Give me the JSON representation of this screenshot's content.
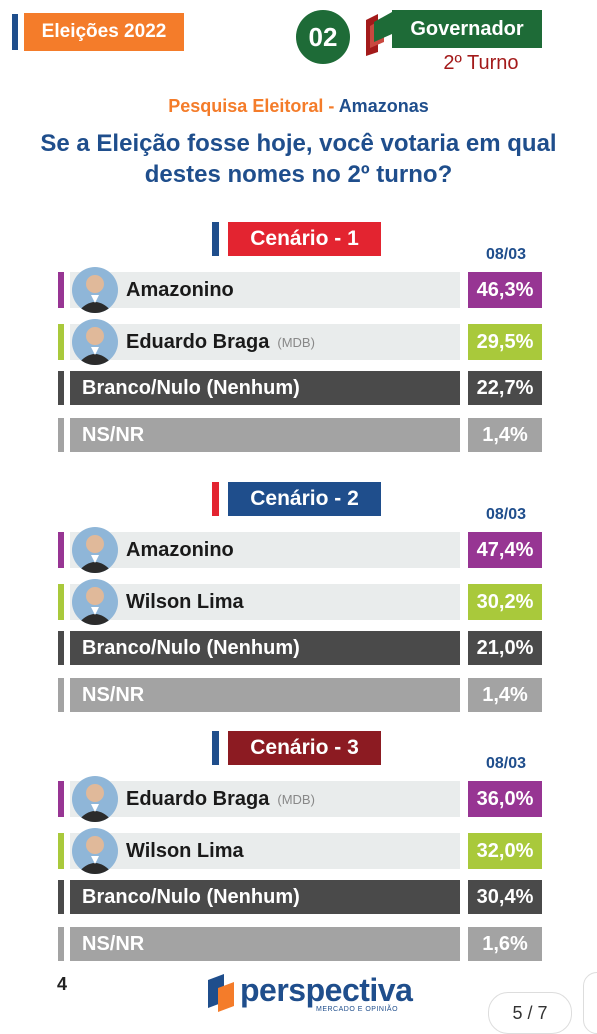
{
  "header": {
    "tag": "Eleições 2022",
    "number": "02",
    "office": "Governador",
    "turn": "2º Turno"
  },
  "subtitle": {
    "part1": "Pesquisa Eleitoral -",
    "part2": "Amazonas"
  },
  "question": "Se a Eleição fosse hoje, você votaria em qual destes nomes no 2º turno?",
  "colors": {
    "purple": "#973593",
    "green": "#a9c93b",
    "dark": "#4a4a4a",
    "gray": "#a3a3a3",
    "rowbg": "#e9ecec",
    "blue": "#1f4e8c",
    "red": "#e32430",
    "darkred": "#8c1b22"
  },
  "chart_data": [
    {
      "type": "table",
      "title": "Cenário - 1",
      "date": "08/03",
      "rows": [
        {
          "label": "Amazonino",
          "party": "",
          "value": "46,3%",
          "style": "candidate",
          "color": "purple"
        },
        {
          "label": "Eduardo Braga",
          "party": "(MDB)",
          "value": "29,5%",
          "style": "candidate",
          "color": "green"
        },
        {
          "label": "Branco/Nulo (Nenhum)",
          "party": "",
          "value": "22,7%",
          "style": "dark",
          "color": "dark"
        },
        {
          "label": "NS/NR",
          "party": "",
          "value": "1,4%",
          "style": "light",
          "color": "gray"
        }
      ]
    },
    {
      "type": "table",
      "title": "Cenário - 2",
      "date": "08/03",
      "rows": [
        {
          "label": "Amazonino",
          "party": "",
          "value": "47,4%",
          "style": "candidate",
          "color": "purple"
        },
        {
          "label": "Wilson Lima",
          "party": "",
          "value": "30,2%",
          "style": "candidate",
          "color": "green"
        },
        {
          "label": "Branco/Nulo (Nenhum)",
          "party": "",
          "value": "21,0%",
          "style": "dark",
          "color": "dark"
        },
        {
          "label": "NS/NR",
          "party": "",
          "value": "1,4%",
          "style": "light",
          "color": "gray"
        }
      ]
    },
    {
      "type": "table",
      "title": "Cenário - 3",
      "date": "08/03",
      "rows": [
        {
          "label": "Eduardo Braga",
          "party": "(MDB)",
          "value": "36,0%",
          "style": "candidate",
          "color": "purple"
        },
        {
          "label": "Wilson Lima",
          "party": "",
          "value": "32,0%",
          "style": "candidate",
          "color": "green"
        },
        {
          "label": "Branco/Nulo (Nenhum)",
          "party": "",
          "value": "30,4%",
          "style": "dark",
          "color": "dark"
        },
        {
          "label": "NS/NR",
          "party": "",
          "value": "1,6%",
          "style": "light",
          "color": "gray"
        }
      ]
    }
  ],
  "footer": {
    "page": "4",
    "logo": "perspectiva",
    "logo_sub": "MERCADO E OPINIÃO",
    "pager": "5 / 7"
  }
}
